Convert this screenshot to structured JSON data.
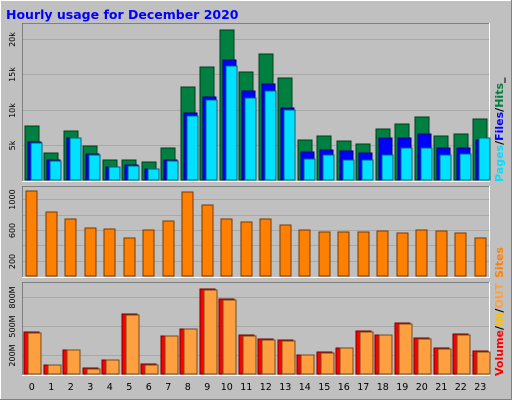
{
  "title": "Hourly usage for December 2020",
  "colors": {
    "background": "#c0c0c0",
    "title": "#0000ff",
    "hits": "#008040",
    "files": "#0000ff",
    "pages": "#00e0ff",
    "sites": "#ff8000",
    "volume": "#ff0000",
    "in": "#ffc000",
    "out": "#ffa040"
  },
  "legend": {
    "top": [
      {
        "text": "Pages",
        "color_key": "pages"
      },
      {
        "text": "/",
        "color_key": "separator"
      },
      {
        "text": "Files",
        "color_key": "files"
      },
      {
        "text": "/",
        "color_key": "separator"
      },
      {
        "text": "Hits",
        "color_key": "hits"
      },
      {
        "text": "_",
        "color_key": "separator"
      }
    ],
    "middle": [
      {
        "text": "Sites",
        "color_key": "sites"
      }
    ],
    "bottom": [
      {
        "text": "Volume",
        "color_key": "volume"
      },
      {
        "text": "/",
        "color_key": "separator"
      },
      {
        "text": "IN",
        "color_key": "in"
      },
      {
        "text": "/",
        "color_key": "separator"
      },
      {
        "text": "OUT",
        "color_key": "out"
      }
    ]
  },
  "chart_data": [
    {
      "type": "bar",
      "panel": "top",
      "categories": [
        "0",
        "1",
        "2",
        "3",
        "4",
        "5",
        "6",
        "7",
        "8",
        "9",
        "10",
        "11",
        "12",
        "13",
        "14",
        "15",
        "16",
        "17",
        "18",
        "19",
        "20",
        "21",
        "22",
        "23"
      ],
      "ylim": [
        0,
        22000
      ],
      "yticks": [
        5000,
        10000,
        15000,
        20000
      ],
      "ytick_labels": [
        "5k",
        "10k",
        "15k",
        "20k"
      ],
      "grid": true,
      "series": [
        {
          "name": "Hits",
          "values": [
            7700,
            3900,
            7000,
            4800,
            2800,
            2900,
            2600,
            4500,
            13200,
            16000,
            21300,
            15400,
            17900,
            14500,
            5700,
            6200,
            5500,
            5100,
            7200,
            8000,
            8900,
            6300,
            6500,
            8700
          ]
        },
        {
          "name": "Files",
          "values": [
            5400,
            2900,
            6000,
            3700,
            1900,
            2100,
            1600,
            2800,
            9500,
            11800,
            17000,
            12700,
            13600,
            10200,
            4000,
            4300,
            4100,
            3800,
            5900,
            5900,
            6600,
            4500,
            4500,
            5700
          ]
        },
        {
          "name": "Pages",
          "values": [
            5300,
            2700,
            5900,
            3600,
            1800,
            2000,
            1500,
            2700,
            9100,
            11400,
            16200,
            11600,
            12700,
            10000,
            3000,
            3600,
            2800,
            2900,
            3500,
            4500,
            4600,
            3600,
            3700,
            6000
          ]
        }
      ]
    },
    {
      "type": "bar",
      "panel": "middle",
      "categories": [
        "0",
        "1",
        "2",
        "3",
        "4",
        "5",
        "6",
        "7",
        "8",
        "9",
        "10",
        "11",
        "12",
        "13",
        "14",
        "15",
        "16",
        "17",
        "18",
        "19",
        "20",
        "21",
        "22",
        "23"
      ],
      "ylim": [
        0,
        1150
      ],
      "yticks": [
        200,
        400,
        600,
        800,
        1000
      ],
      "ytick_labels": [
        "200",
        "",
        "600",
        "",
        "1000"
      ],
      "grid": true,
      "series": [
        {
          "name": "Sites",
          "values": [
            1110,
            830,
            750,
            630,
            610,
            500,
            600,
            720,
            1100,
            930,
            740,
            700,
            750,
            660,
            600,
            580,
            570,
            570,
            590,
            560,
            600,
            590,
            560,
            500
          ]
        }
      ]
    },
    {
      "type": "bar",
      "panel": "bottom",
      "categories": [
        "0",
        "1",
        "2",
        "3",
        "4",
        "5",
        "6",
        "7",
        "8",
        "9",
        "10",
        "11",
        "12",
        "13",
        "14",
        "15",
        "16",
        "17",
        "18",
        "19",
        "20",
        "21",
        "22",
        "23"
      ],
      "ylim": [
        0,
        930
      ],
      "yticks": [
        200,
        500,
        800
      ],
      "ytick_labels": [
        "200M",
        "500M",
        "800M"
      ],
      "grid": true,
      "series": [
        {
          "name": "Volume",
          "values": [
            430,
            90,
            250,
            60,
            140,
            620,
            100,
            390,
            470,
            880,
            770,
            400,
            360,
            350,
            200,
            230,
            270,
            440,
            400,
            530,
            370,
            270,
            410,
            240
          ]
        },
        {
          "name": "OUT",
          "values": [
            420,
            90,
            250,
            50,
            140,
            610,
            90,
            390,
            460,
            870,
            760,
            390,
            350,
            340,
            200,
            220,
            270,
            430,
            400,
            520,
            360,
            260,
            400,
            230
          ]
        }
      ]
    }
  ]
}
